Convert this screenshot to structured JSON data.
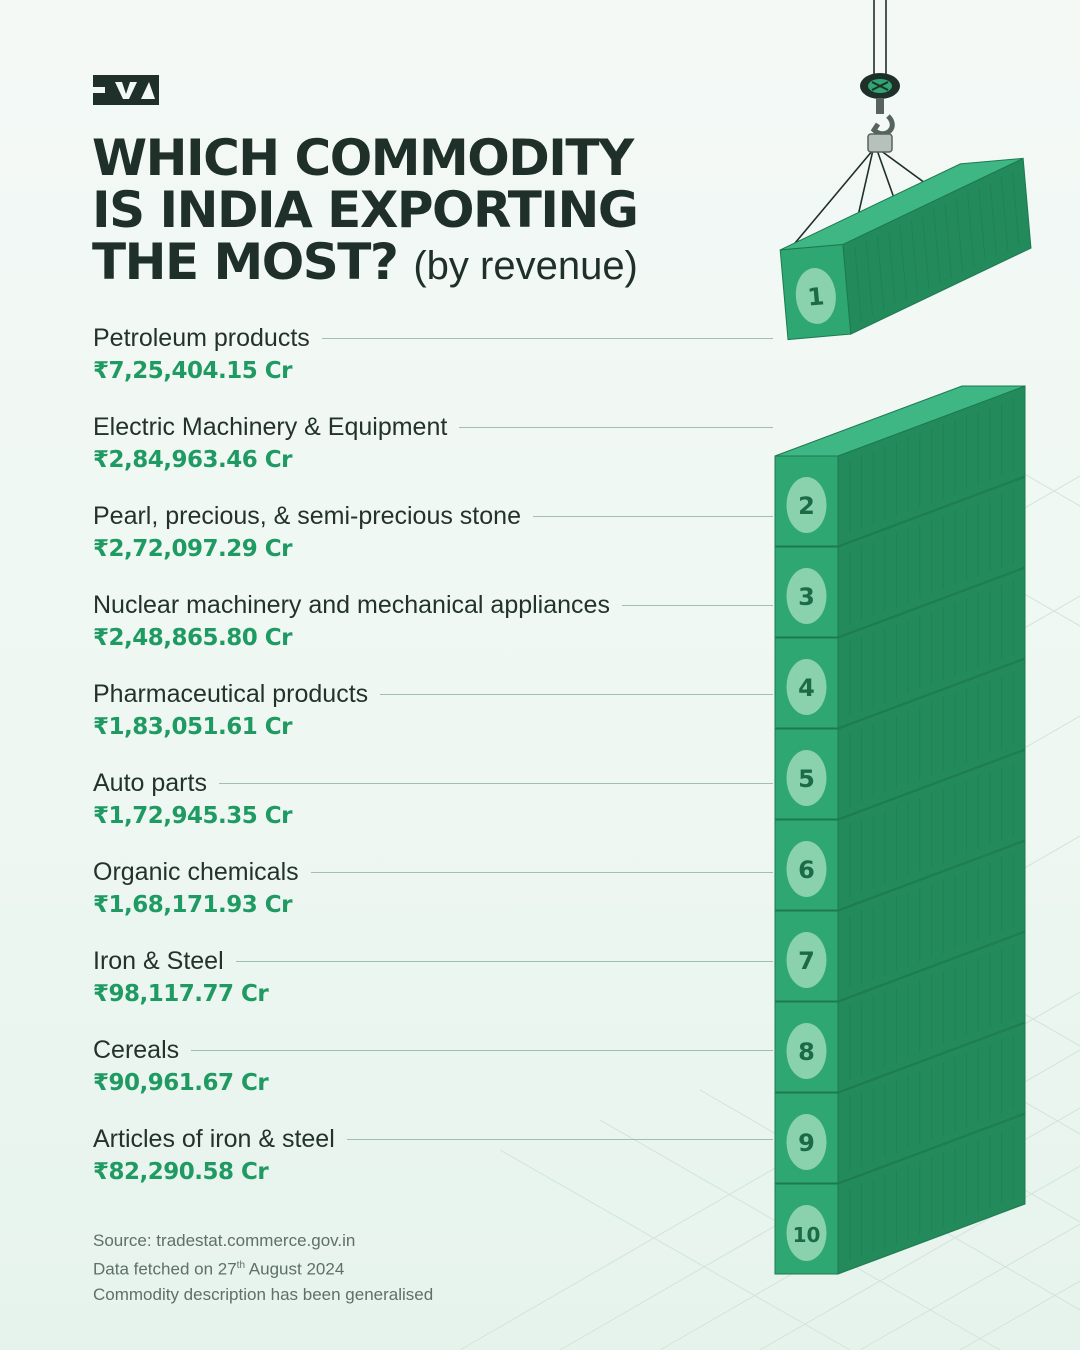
{
  "brand": {
    "accent": "#1f9a62",
    "container_front": "#2fa772",
    "container_side": "#238a5c",
    "container_top": "#3fb784"
  },
  "header": {
    "title_lines": [
      "WHICH COMMODITY",
      "IS INDIA EXPORTING",
      "THE MOST?"
    ],
    "subtitle": "(by revenue)"
  },
  "chart_data": {
    "type": "table",
    "title": "WHICH COMMODITY IS INDIA EXPORTING THE MOST? (by revenue)",
    "unit": "Cr",
    "rows": [
      {
        "rank": "1",
        "name": "Petroleum products",
        "value": 725404.15,
        "label": "₹7,25,404.15 Cr"
      },
      {
        "rank": "2",
        "name": "Electric Machinery & Equipment",
        "value": 284963.46,
        "label": "₹2,84,963.46 Cr"
      },
      {
        "rank": "3",
        "name": "Pearl, precious, & semi-precious stone",
        "value": 272097.29,
        "label": "₹2,72,097.29 Cr"
      },
      {
        "rank": "4",
        "name": "Nuclear machinery and mechanical appliances",
        "value": 248865.8,
        "label": "₹2,48,865.80 Cr"
      },
      {
        "rank": "5",
        "name": "Pharmaceutical products",
        "value": 183051.61,
        "label": "₹1,83,051.61 Cr"
      },
      {
        "rank": "6",
        "name": "Auto parts",
        "value": 172945.35,
        "label": "₹1,72,945.35 Cr"
      },
      {
        "rank": "7",
        "name": "Organic chemicals",
        "value": 168171.93,
        "label": "₹1,68,171.93 Cr"
      },
      {
        "rank": "8",
        "name": "Iron & Steel",
        "value": 98117.77,
        "label": "₹98,117.77 Cr"
      },
      {
        "rank": "9",
        "name": "Cereals",
        "value": 90961.67,
        "label": "₹90,961.67 Cr"
      },
      {
        "rank": "10",
        "name": "Articles of iron & steel",
        "value": 82290.58,
        "label": "₹82,290.58 Cr"
      }
    ]
  },
  "footer": {
    "source": "Source: tradestat.commerce.gov.in",
    "fetched_prefix": "Data fetched on 27",
    "fetched_sup": "th",
    "fetched_suffix": " August 2024",
    "note": "Commodity description has been generalised"
  }
}
